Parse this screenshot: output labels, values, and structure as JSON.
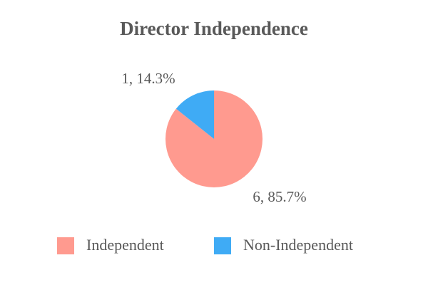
{
  "chart_data": {
    "type": "pie",
    "title": "Director Independence",
    "categories": [
      "Independent",
      "Non-Independent"
    ],
    "values": [
      6,
      1
    ],
    "value_labels": [
      "6, 85.7%",
      "1, 14.3%"
    ],
    "colors": [
      "#ff9a8f",
      "#3fabf5"
    ],
    "legend": "bottom"
  }
}
